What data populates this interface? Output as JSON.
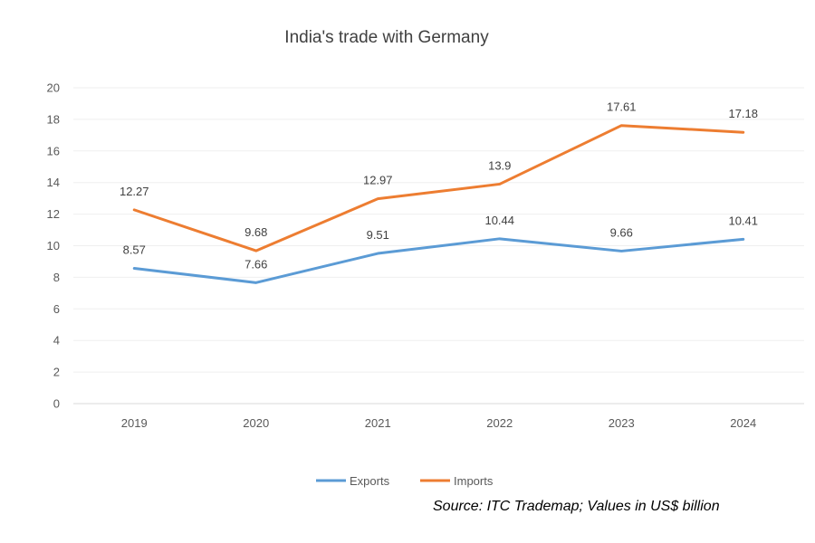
{
  "chart_data": {
    "type": "line",
    "title": "India's trade with Germany",
    "categories": [
      "2019",
      "2020",
      "2021",
      "2022",
      "2023",
      "2024"
    ],
    "series": [
      {
        "name": "Exports",
        "color": "#5B9BD5",
        "values": [
          8.57,
          7.66,
          9.51,
          10.44,
          9.66,
          10.41
        ],
        "labels": [
          "8.57",
          "7.66",
          "9.51",
          "10.44",
          "9.66",
          "10.41"
        ]
      },
      {
        "name": "Imports",
        "color": "#ED7D31",
        "values": [
          12.27,
          9.68,
          12.97,
          13.9,
          17.61,
          17.18
        ],
        "labels": [
          "12.27",
          "9.68",
          "12.97",
          "13.9",
          "17.61",
          "17.18"
        ]
      }
    ],
    "ylim": [
      0,
      20
    ],
    "yticks": [
      "0",
      "2",
      "4",
      "6",
      "8",
      "10",
      "12",
      "14",
      "16",
      "18",
      "20"
    ],
    "grid": true,
    "legend": "bottom",
    "xlabel": "",
    "ylabel": ""
  },
  "source": "Source: ITC Trademap; Values in US$ billion"
}
